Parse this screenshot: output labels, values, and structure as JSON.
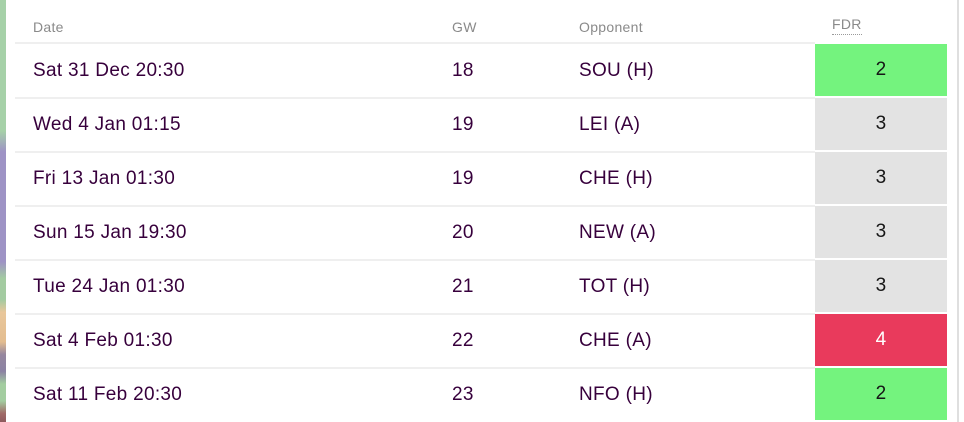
{
  "table": {
    "columns": {
      "date": "Date",
      "gw": "GW",
      "opponent": "Opponent",
      "fdr": "FDR"
    },
    "rows": [
      {
        "date": "Sat 31 Dec 20:30",
        "gw": "18",
        "opponent": "SOU (H)",
        "fdr": "2"
      },
      {
        "date": "Wed 4 Jan 01:15",
        "gw": "19",
        "opponent": "LEI (A)",
        "fdr": "3"
      },
      {
        "date": "Fri 13 Jan 01:30",
        "gw": "19",
        "opponent": "CHE (H)",
        "fdr": "3"
      },
      {
        "date": "Sun 15 Jan 19:30",
        "gw": "20",
        "opponent": "NEW (A)",
        "fdr": "3"
      },
      {
        "date": "Tue 24 Jan 01:30",
        "gw": "21",
        "opponent": "TOT (H)",
        "fdr": "3"
      },
      {
        "date": "Sat 4 Feb 01:30",
        "gw": "22",
        "opponent": "CHE (A)",
        "fdr": "4"
      },
      {
        "date": "Sat 11 Feb 20:30",
        "gw": "23",
        "opponent": "NFO (H)",
        "fdr": "2"
      }
    ],
    "fdr_colors": {
      "2": {
        "bg": "#74f37e",
        "text": "#161616"
      },
      "3": {
        "bg": "#e3e3e3",
        "text": "#161616"
      },
      "4": {
        "bg": "#e93a5c",
        "text": "#ffffff"
      }
    },
    "text_color": "#37003c",
    "header_text_color": "#8a8a8a"
  }
}
